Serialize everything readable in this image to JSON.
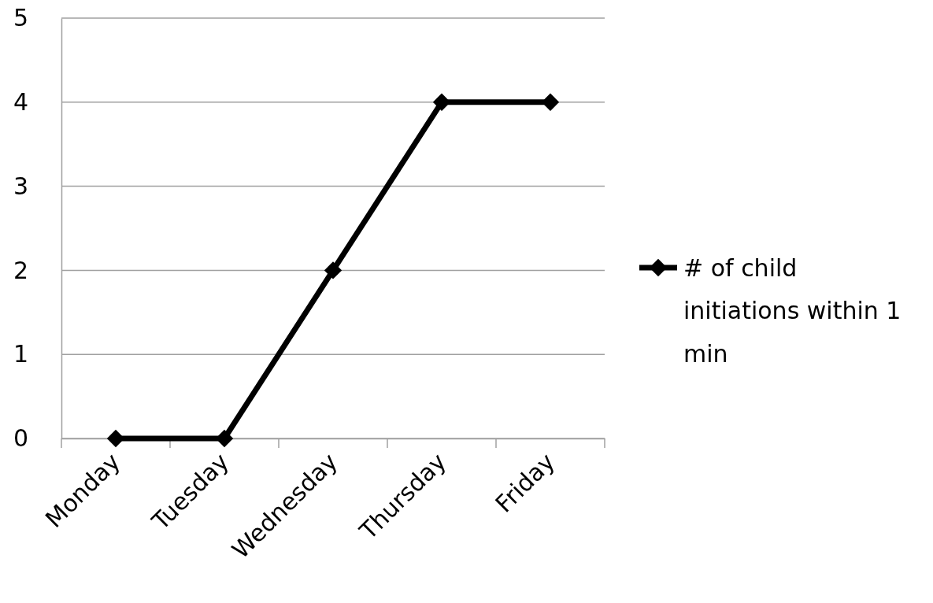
{
  "chart_data": {
    "type": "line",
    "categories": [
      "Monday",
      "Tuesday",
      "Wednesday",
      "Thursday",
      "Friday"
    ],
    "series": [
      {
        "name": "# of child initiations within 1 min",
        "color": "#000000",
        "values": [
          0,
          0,
          2,
          4,
          4
        ]
      }
    ],
    "ylim": [
      0,
      5
    ],
    "yticks": [
      0,
      1,
      2,
      3,
      4,
      5
    ],
    "grid": "y",
    "legend": "right",
    "marker": "diamond",
    "line_style": "solid"
  }
}
